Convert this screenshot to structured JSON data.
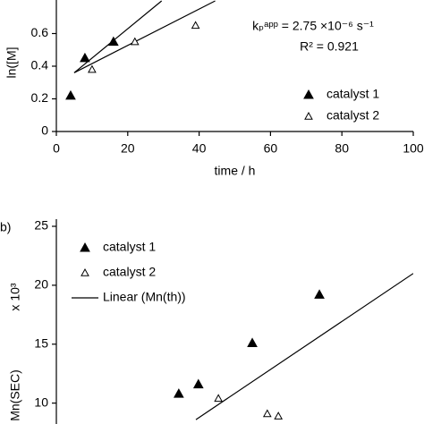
{
  "chart_data": [
    {
      "type": "scatter",
      "y_label": "ln([M]",
      "x_label": "time / h",
      "annotations": [
        "kₚᵃᵖᵖ = 2.75 ×10⁻⁶ s⁻¹",
        "R² = 0.921"
      ],
      "xlim": [
        0,
        100
      ],
      "xticks": [
        0,
        20,
        40,
        60,
        80,
        100
      ],
      "ylim": [
        0,
        0.8
      ],
      "yticks": [
        0,
        {
          "value": 0.2,
          "label": "0.2"
        },
        {
          "value": 0.4,
          "label": "0.4"
        },
        {
          "value": 0.6,
          "label": "0.6"
        }
      ],
      "series": [
        {
          "name": "catalyst 1",
          "color": "#000000",
          "marker": "filled",
          "x": [
            4,
            8,
            16
          ],
          "values": [
            0.22,
            0.45,
            0.55
          ]
        },
        {
          "name": "catalyst 2",
          "color": "#000000",
          "marker": "open",
          "x": [
            10,
            22,
            39
          ],
          "values": [
            0.38,
            0.55,
            0.65
          ]
        },
        {
          "color": "#000000",
          "marker": "line",
          "x": [
            5,
            29.5
          ],
          "values": [
            0.36,
            0.8
          ]
        },
        {
          "color": "#000000",
          "marker": "line",
          "x": [
            5,
            44.5
          ],
          "values": [
            0.36,
            0.8
          ]
        }
      ]
    },
    {
      "type": "scatter",
      "panel_label": "b)",
      "y_label": "Mn(SEC)",
      "y_unit": "x 10³",
      "xlim": [
        0,
        100
      ],
      "ylim": [
        8,
        25
      ],
      "yticks": [
        10,
        15,
        20,
        25
      ],
      "series": [
        {
          "name": "catalyst 1",
          "color": "#000000",
          "marker": "filled",
          "x": [
            34.3,
            39.8,
            54.9,
            73.7
          ],
          "values": [
            10.8,
            11.6,
            15.1,
            19.2
          ]
        },
        {
          "name": "catalyst 2",
          "color": "#000000",
          "marker": "open",
          "x": [
            45.4,
            59.1,
            62.2
          ],
          "values": [
            10.4,
            9.1,
            8.9
          ]
        },
        {
          "name": "Linear (Mn(th))",
          "color": "#000000",
          "marker": "line",
          "x": [
            39.1,
            100
          ],
          "values": [
            8.6,
            21.0
          ]
        }
      ]
    }
  ]
}
